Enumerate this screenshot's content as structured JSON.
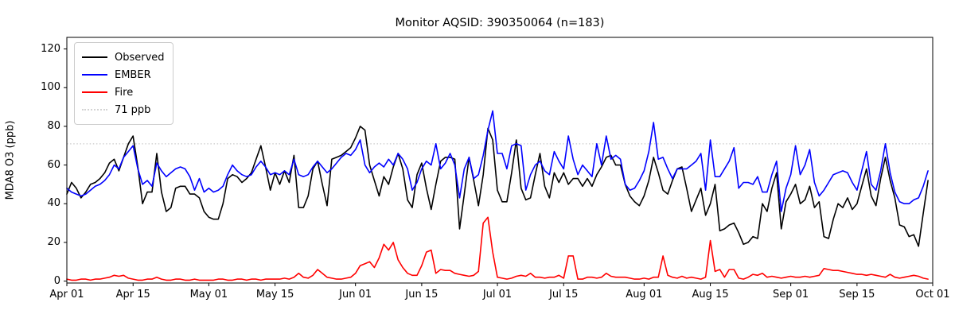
{
  "title": "Monitor AQSID: 390350064 (n=183)",
  "chart_data": {
    "type": "line",
    "title": "Monitor AQSID: 390350064 (n=183)",
    "xlabel": "",
    "ylabel": "MDA8 O3 (ppb)",
    "n_points": 183,
    "x_range_days": [
      0,
      183
    ],
    "x_start_label": "Apr 01",
    "x_end_label": "Oct 01",
    "ylim": [
      -1,
      126
    ],
    "yticks": [
      0,
      20,
      40,
      60,
      80,
      100,
      120
    ],
    "xticks": [
      {
        "day": 0,
        "label": "Apr 01"
      },
      {
        "day": 14,
        "label": "Apr 15"
      },
      {
        "day": 30,
        "label": "May 01"
      },
      {
        "day": 44,
        "label": "May 15"
      },
      {
        "day": 61,
        "label": "Jun 01"
      },
      {
        "day": 75,
        "label": "Jun 15"
      },
      {
        "day": 91,
        "label": "Jul 01"
      },
      {
        "day": 105,
        "label": "Jul 15"
      },
      {
        "day": 122,
        "label": "Aug 01"
      },
      {
        "day": 136,
        "label": "Aug 15"
      },
      {
        "day": 153,
        "label": "Sep 01"
      },
      {
        "day": 167,
        "label": "Sep 15"
      },
      {
        "day": 183,
        "label": "Oct 01"
      }
    ],
    "grid": false,
    "legend_position": "upper left",
    "reference_line": {
      "label": "71 ppb",
      "value": 71,
      "color": "#d3d3d3",
      "style": "dotted"
    },
    "legend": [
      {
        "label": "Observed",
        "color": "#000000",
        "dotted": false
      },
      {
        "label": "EMBER",
        "color": "#0000ff",
        "dotted": false
      },
      {
        "label": "Fire",
        "color": "#ff0000",
        "dotted": false
      },
      {
        "label": "71 ppb",
        "color": "#d3d3d3",
        "dotted": true
      }
    ],
    "series": [
      {
        "name": "Observed",
        "color": "#000000",
        "values": [
          45,
          51,
          48,
          43,
          46,
          50,
          51,
          53,
          56,
          61,
          63,
          57,
          64,
          71,
          75,
          59,
          40,
          46,
          46,
          66,
          46,
          36,
          38,
          48,
          49,
          49,
          45,
          45,
          43,
          36,
          33,
          32,
          32,
          40,
          53,
          55,
          54,
          51,
          53,
          56,
          63,
          70,
          59,
          47,
          56,
          50,
          57,
          51,
          65,
          38,
          38,
          44,
          58,
          62,
          50,
          39,
          63,
          64,
          65,
          67,
          69,
          74,
          80,
          78,
          60,
          52,
          44,
          54,
          50,
          59,
          66,
          58,
          42,
          38,
          55,
          61,
          48,
          37,
          50,
          62,
          64,
          64,
          63,
          27,
          45,
          64,
          52,
          39,
          55,
          79,
          73,
          47,
          41,
          41,
          56,
          73,
          48,
          42,
          43,
          55,
          66,
          49,
          43,
          56,
          51,
          56,
          50,
          53,
          53,
          49,
          53,
          49,
          55,
          59,
          64,
          65,
          60,
          60,
          50,
          44,
          41,
          39,
          44,
          52,
          64,
          56,
          47,
          45,
          52,
          58,
          59,
          48,
          36,
          42,
          48,
          34,
          40,
          50,
          26,
          27,
          29,
          30,
          25,
          19,
          20,
          23,
          22,
          40,
          36,
          48,
          56,
          27,
          41,
          45,
          50,
          40,
          42,
          49,
          38,
          41,
          23,
          22,
          32,
          40,
          38,
          43,
          37,
          40,
          49,
          58,
          44,
          39,
          53,
          64,
          52,
          43,
          29,
          28,
          23,
          24,
          18,
          35,
          52
        ]
      },
      {
        "name": "EMBER",
        "color": "#0000ff",
        "values": [
          48,
          46,
          45,
          44,
          45,
          47,
          49,
          50,
          52,
          55,
          60,
          58,
          64,
          67,
          70,
          58,
          50,
          52,
          49,
          61,
          57,
          54,
          56,
          58,
          59,
          58,
          54,
          47,
          53,
          46,
          48,
          46,
          47,
          49,
          55,
          60,
          57,
          55,
          54,
          55,
          59,
          62,
          59,
          55,
          56,
          55,
          57,
          55,
          63,
          55,
          54,
          55,
          59,
          62,
          59,
          56,
          58,
          61,
          64,
          66,
          65,
          68,
          73,
          60,
          56,
          59,
          61,
          59,
          63,
          60,
          66,
          63,
          58,
          47,
          51,
          58,
          62,
          60,
          71,
          58,
          61,
          66,
          60,
          43,
          58,
          64,
          53,
          55,
          65,
          78,
          88,
          66,
          66,
          58,
          70,
          71,
          70,
          47,
          55,
          60,
          62,
          57,
          55,
          67,
          62,
          58,
          75,
          63,
          55,
          60,
          57,
          54,
          71,
          60,
          75,
          63,
          65,
          63,
          50,
          47,
          48,
          52,
          57,
          67,
          82,
          63,
          64,
          58,
          53,
          58,
          58,
          58,
          60,
          62,
          66,
          47,
          73,
          54,
          54,
          58,
          62,
          69,
          48,
          51,
          51,
          50,
          54,
          46,
          46,
          55,
          62,
          36,
          48,
          55,
          70,
          55,
          60,
          68,
          51,
          44,
          47,
          51,
          55,
          56,
          57,
          56,
          51,
          47,
          57,
          67,
          50,
          47,
          57,
          71,
          56,
          46,
          41,
          40,
          40,
          42,
          43,
          49,
          57
        ]
      },
      {
        "name": "Fire",
        "color": "#ff0000",
        "values": [
          1,
          0.5,
          0.5,
          1,
          1,
          0.5,
          1,
          1,
          1.5,
          2,
          3,
          2.5,
          3,
          1.5,
          1,
          0.5,
          0.5,
          1,
          1,
          2,
          1,
          0.5,
          0.5,
          1,
          1,
          0.5,
          0.5,
          1,
          0.5,
          0.5,
          0.5,
          0.5,
          1,
          1,
          0.5,
          0.5,
          1,
          1,
          0.5,
          1,
          1,
          0.5,
          1,
          1,
          1,
          1,
          1.5,
          1,
          2,
          4,
          2,
          1.5,
          3,
          6,
          4,
          2,
          1.5,
          1,
          1,
          1.5,
          2,
          4,
          8,
          9,
          10,
          7,
          12,
          19,
          16,
          20,
          11,
          7,
          4,
          3,
          3,
          8,
          15,
          16,
          4,
          6,
          5.5,
          5.5,
          4,
          3.5,
          3,
          2.5,
          3,
          5,
          30,
          33,
          15,
          2,
          1.5,
          1,
          1.5,
          2.5,
          3,
          2.5,
          4,
          2,
          2,
          1.5,
          2,
          2,
          3,
          1.5,
          13,
          13,
          1,
          1,
          2,
          2,
          1.5,
          2,
          4,
          2.5,
          2,
          2,
          2,
          1.5,
          1,
          1,
          1.5,
          1,
          2,
          2,
          13,
          3,
          2,
          1.5,
          2.5,
          1.5,
          2,
          1.5,
          1,
          2,
          21,
          5,
          6,
          2,
          6,
          6,
          1.5,
          1,
          2,
          3.5,
          3,
          4,
          2,
          2.5,
          2,
          1.5,
          2,
          2.5,
          2,
          2,
          2.5,
          2,
          2.5,
          3,
          6.5,
          6,
          5.5,
          5.5,
          5,
          4.5,
          4,
          3.5,
          3.5,
          3,
          3.5,
          3,
          2.5,
          2,
          3.5,
          2,
          1.5,
          2,
          2.5,
          3,
          2.5,
          1.5,
          1
        ]
      }
    ]
  }
}
